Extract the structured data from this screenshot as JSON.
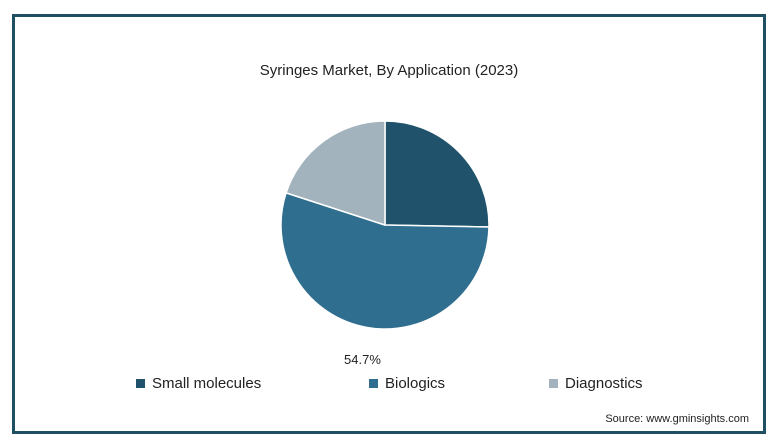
{
  "chart_data": {
    "type": "pie",
    "title": "Syringes Market, By Application (2023)",
    "categories": [
      "Small molecules",
      "Biologics",
      "Diagnostics"
    ],
    "values": [
      25.3,
      54.7,
      20.0
    ],
    "data_labels": [
      "",
      "54.7%",
      ""
    ],
    "colors": [
      "#20536b",
      "#2f6e8f",
      "#a3b3be"
    ],
    "legend_position": "bottom",
    "start_angle_deg": 0,
    "direction": "clockwise"
  },
  "source": "Source: www.gminsights.com"
}
